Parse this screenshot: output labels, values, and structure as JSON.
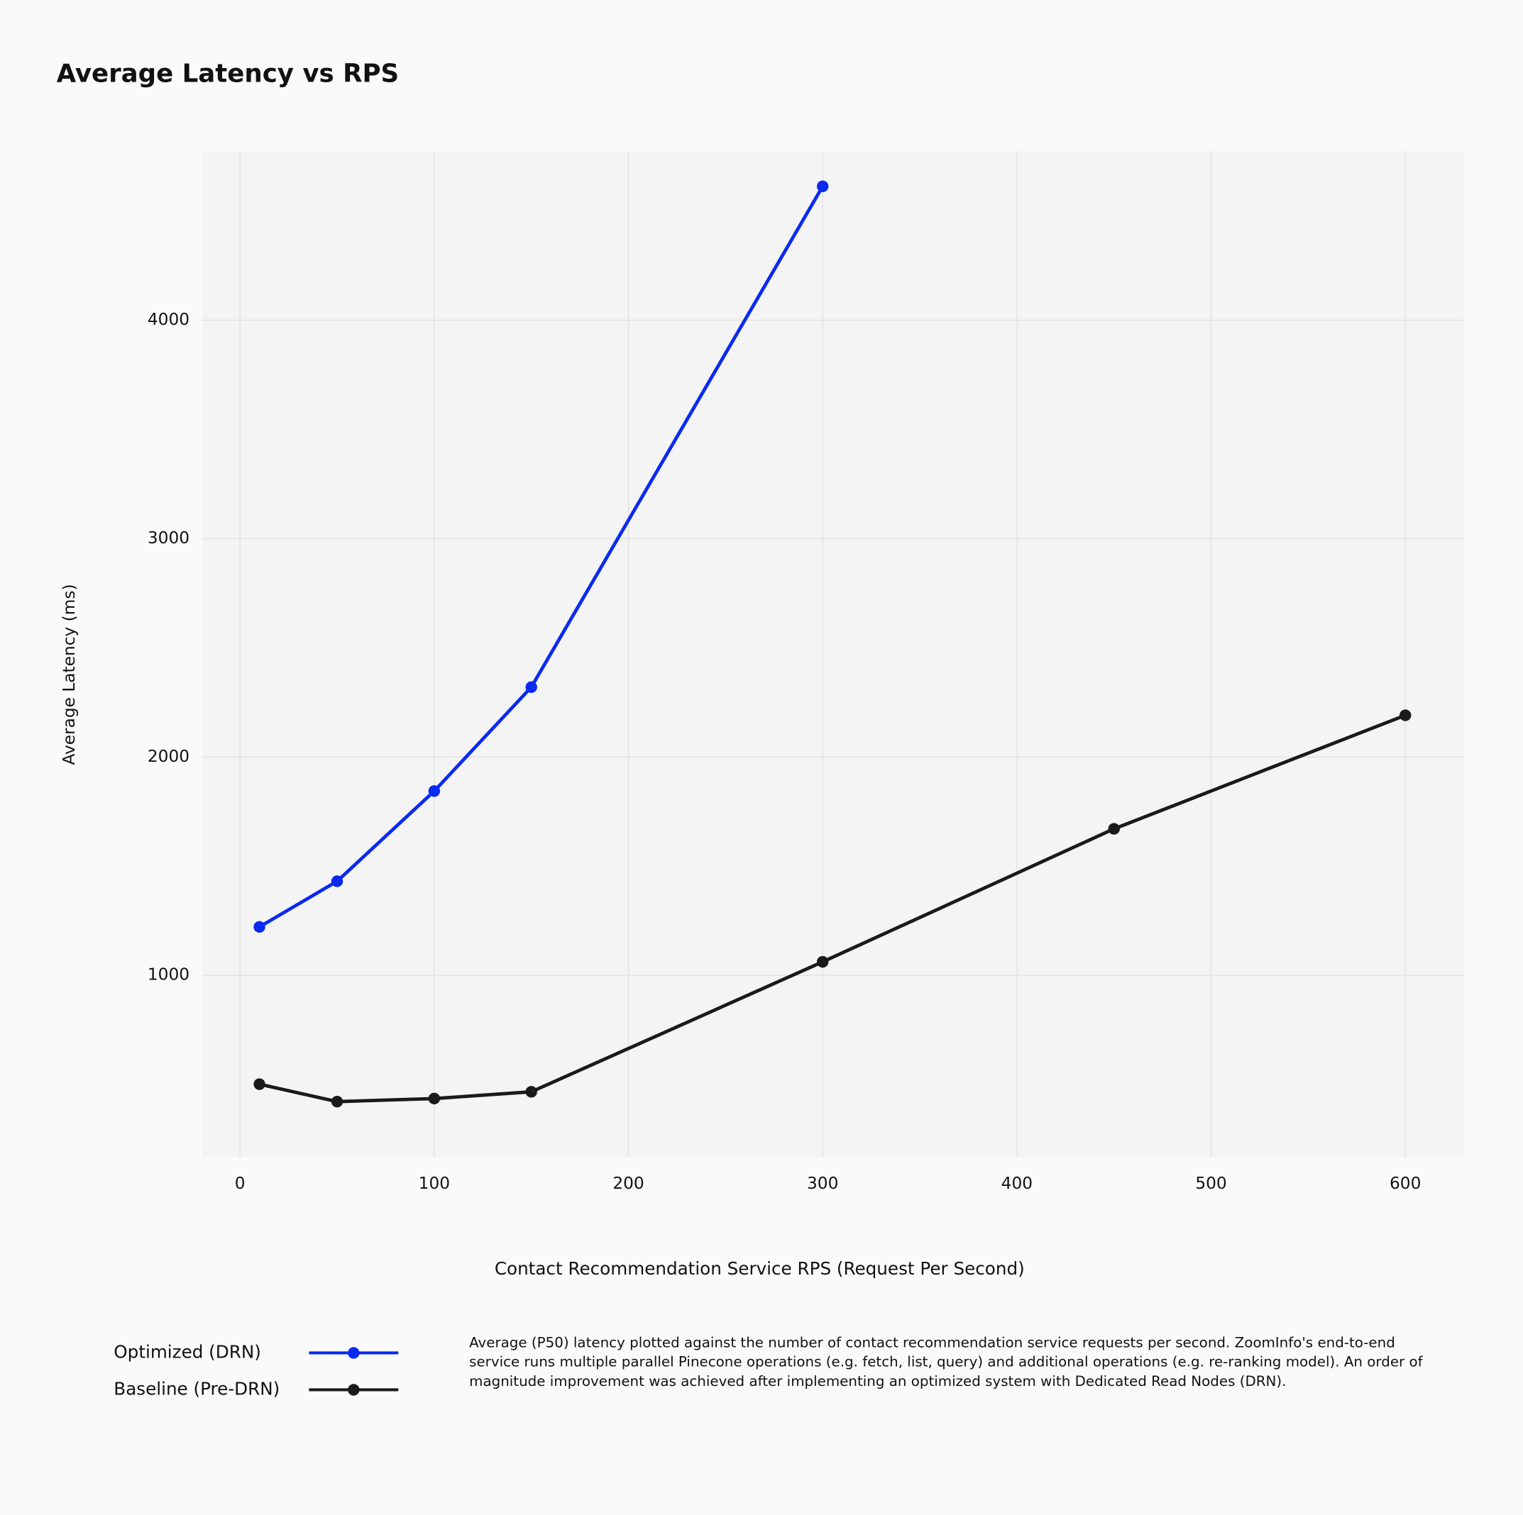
{
  "chart_data": {
    "type": "line",
    "title": "Average Latency vs RPS",
    "x_label": "Contact Recommendation Service RPS (Request Per Second)",
    "y_label": "Average Latency (ms)",
    "caption": "Average (P50) latency plotted against the number of contact recommendation service requests per second. ZoomInfo's end-to-end service runs multiple parallel Pinecone operations (e.g. fetch, list, query) and additional operations (e.g. re-ranking model). An order of magnitude improvement was achieved after implementing an optimized system with Dedicated Read Nodes (DRN).",
    "series": [
      {
        "name": "Optimized (DRN)",
        "color": "#0a2af0",
        "x": [
          10,
          50,
          100,
          150,
          300
        ],
        "values": [
          1222,
          1431,
          1844,
          2320,
          4613
        ]
      },
      {
        "name": "Baseline (Pre-DRN)",
        "color": "#1a1a1a",
        "x": [
          10,
          50,
          100,
          150,
          300,
          450,
          600
        ],
        "values": [
          502,
          422,
          436,
          467,
          1062,
          1671,
          2191
        ]
      }
    ],
    "xlim": [
      -19.5,
      630
    ],
    "xticks": [
      0,
      100,
      200,
      300,
      400,
      500,
      600
    ],
    "ylim": [
      169,
      4773
    ],
    "yticks": [
      1000,
      2000,
      3000,
      4000
    ],
    "grid": true
  }
}
